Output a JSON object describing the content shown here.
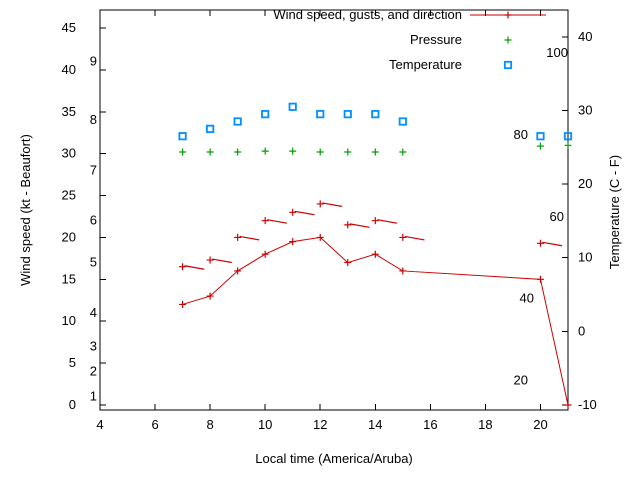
{
  "page": {
    "background": "#ffffff"
  },
  "chart_data": {
    "type": "line",
    "title": "",
    "xlabel": "Local time (America/Aruba)",
    "ylabel_left": "Wind speed (kt - Beaufort)",
    "ylabel_right": "Temperature (C - F)",
    "xlim": [
      4,
      21
    ],
    "y_left_lim": [
      -0.6,
      47.15
    ],
    "y_right_lim": [
      -10.7,
      43.65
    ],
    "x_ticks": [
      4,
      6,
      8,
      10,
      12,
      14,
      16,
      18,
      20
    ],
    "y_left_ticks": [
      0,
      5,
      10,
      15,
      20,
      25,
      30,
      35,
      40,
      45
    ],
    "y_right_ticks": [
      -10,
      0,
      10,
      20,
      30,
      40
    ],
    "beaufort_scale": [
      {
        "label": "1",
        "kt": 1
      },
      {
        "label": "2",
        "kt": 4
      },
      {
        "label": "3",
        "kt": 7
      },
      {
        "label": "4",
        "kt": 11
      },
      {
        "label": "5",
        "kt": 17
      },
      {
        "label": "6",
        "kt": 22
      },
      {
        "label": "7",
        "kt": 28
      },
      {
        "label": "8",
        "kt": 34
      },
      {
        "label": "9",
        "kt": 41
      }
    ],
    "fahrenheit_scale": [
      {
        "label": "20",
        "f": 20
      },
      {
        "label": "40",
        "f": 40
      },
      {
        "label": "60",
        "f": 60
      },
      {
        "label": "80",
        "f": 80
      },
      {
        "label": "100",
        "f": 100
      }
    ],
    "legend": [
      {
        "label": "Wind speed, gusts, and direction",
        "color": "#cc0000",
        "marker": "plus-line"
      },
      {
        "label": "Pressure",
        "color": "#00a000",
        "marker": "plus"
      },
      {
        "label": "Temperature",
        "color": "#0090ff",
        "marker": "open-square"
      }
    ],
    "series": [
      {
        "name": "wind-speed",
        "axis": "left",
        "marker": "plus",
        "line": true,
        "x": [
          7,
          8,
          9,
          10,
          11,
          12,
          13,
          14,
          15,
          20,
          21
        ],
        "y": [
          12,
          13,
          16,
          18,
          19.5,
          20,
          17,
          18,
          16,
          15,
          0
        ]
      },
      {
        "name": "wind-gusts-direction",
        "axis": "left",
        "marker": "plus-with-direction-tick",
        "x": [
          7,
          8,
          9,
          10,
          11,
          12,
          13,
          14,
          15,
          20
        ],
        "y": [
          16.5,
          17.3,
          20,
          22,
          23,
          24,
          21.5,
          22,
          20,
          19.3
        ],
        "tilt_deg": [
          10,
          10,
          10,
          10,
          10,
          10,
          10,
          10,
          10,
          10
        ]
      },
      {
        "name": "pressure",
        "axis": "left",
        "marker": "plus",
        "x": [
          7,
          8,
          9,
          10,
          11,
          12,
          13,
          14,
          15,
          20,
          21
        ],
        "y": [
          30.2,
          30.2,
          30.2,
          30.3,
          30.3,
          30.2,
          30.2,
          30.2,
          30.2,
          30.9,
          31
        ]
      },
      {
        "name": "temperature",
        "axis": "right",
        "marker": "open-square",
        "x": [
          7,
          8,
          9,
          10,
          11,
          12,
          13,
          14,
          15,
          20,
          21
        ],
        "y": [
          26.5,
          27.5,
          28.5,
          29.5,
          30.5,
          29.5,
          29.5,
          29.5,
          28.5,
          26.5,
          26.5
        ]
      }
    ]
  }
}
